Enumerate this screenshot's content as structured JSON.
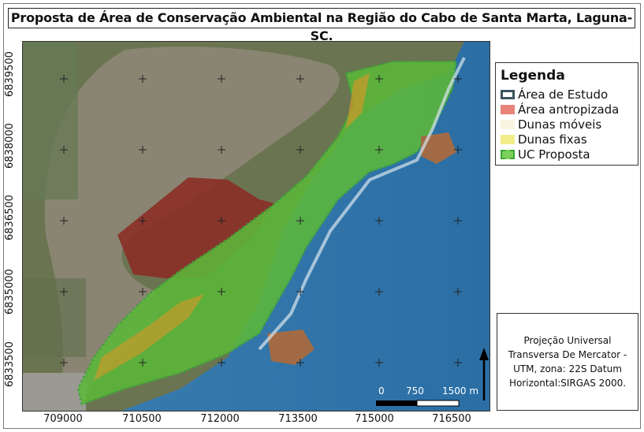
{
  "title": "Proposta de Área de Conservação Ambiental na Região do Cabo de Santa Marta, Laguna-SC.",
  "axes": {
    "y_ticks": [
      "6839500",
      "6838000",
      "6836500",
      "6835000",
      "6833500"
    ],
    "x_ticks": [
      "709000",
      "710500",
      "712000",
      "713500",
      "715000",
      "716500"
    ]
  },
  "legend": {
    "title": "Legenda",
    "items": [
      {
        "label": "Área de Estudo",
        "color": "#3d5560",
        "style": "outline"
      },
      {
        "label": "Área antropizada",
        "color": "#e8837c",
        "style": "fill"
      },
      {
        "label": "Dunas móveis",
        "color": "#f7f5e0",
        "style": "fill"
      },
      {
        "label": "Dunas fixas",
        "color": "#f3ec8a",
        "style": "fill"
      },
      {
        "label": "UC Proposta",
        "color": "#3aa53a",
        "style": "dashed"
      }
    ]
  },
  "scale_bar": {
    "labels": [
      "0",
      "750",
      "1500 m"
    ]
  },
  "projection": {
    "text": "Projeção Universal Transversa De Mercator - UTM, zona: 22S Datum Horizontal:SIRGAS 2000."
  },
  "colors": {
    "lagoon": "#7d7a66",
    "sea": "#2f74a8",
    "land": "#5d7043",
    "uc_green": "#5cb83a",
    "anthropized": "#8b2f27",
    "fixed_dunes": "#c89a2a"
  }
}
